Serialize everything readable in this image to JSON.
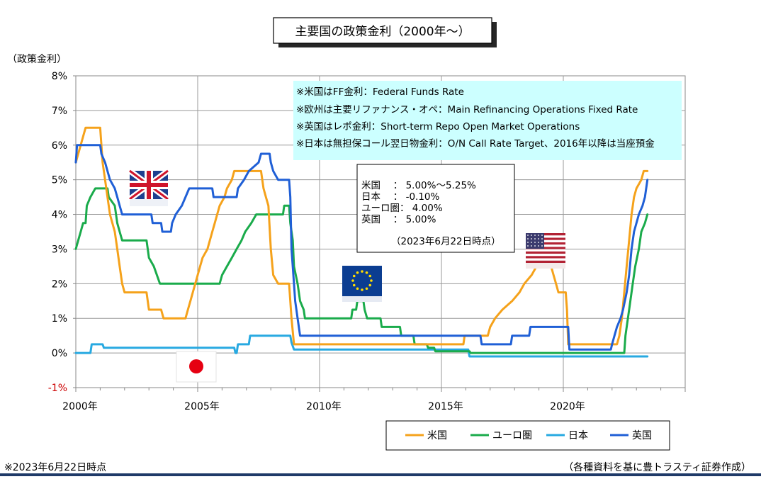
{
  "title": "主要国の政策金利（2000年～）",
  "y_unit_label": "（政策金利）",
  "notes": [
    "※米国はFF金利：Federal Funds Rate",
    "※欧州は主要リファナンス・オペ：Main Refinancing Operations Fixed Rate",
    "※英国はレポ金利：Short-term Repo Open Market Operations",
    "※日本は無担保コール翌日物金利：O/N Call Rate Target、2016年以降は当座預金"
  ],
  "info_box": {
    "lines": [
      "米国　 ： 5.00%～5.25%",
      "日本　 ： -0.10%",
      "ユーロ圏： 4.00%",
      "英国　 ： 5.00%"
    ],
    "date": "（2023年6月22日時点）"
  },
  "footer_left": "※2023年6月22日時点",
  "footer_right": "（各種資料を基に豊トラスティ証券作成）",
  "colors": {
    "us": "#f5a21b",
    "eu": "#1aab4b",
    "jp": "#27a9e1",
    "uk": "#1f5fd6",
    "note_bg": "#ccffff",
    "footer_line": "#1f3a68"
  },
  "flags": [
    "uk-flag-icon",
    "eu-flag-icon",
    "us-flag-icon",
    "japan-flag-icon"
  ],
  "chart_data": {
    "type": "line",
    "xlim": [
      2000,
      2025
    ],
    "ylim": [
      -1,
      8
    ],
    "y_ticks": [
      "8%",
      "7%",
      "6%",
      "5%",
      "4%",
      "3%",
      "2%",
      "1%",
      "0%",
      "-1%"
    ],
    "x_ticks": [
      {
        "x": 2000,
        "label": "2000年"
      },
      {
        "x": 2005,
        "label": "2005年"
      },
      {
        "x": 2010,
        "label": "2010年"
      },
      {
        "x": 2015,
        "label": "2015年"
      },
      {
        "x": 2020,
        "label": "2020年"
      }
    ],
    "grid": true,
    "legend_placement": "bottom-right",
    "series": [
      {
        "key": "us",
        "name": "米国",
        "points": [
          [
            2000.0,
            5.5
          ],
          [
            2000.1,
            5.75
          ],
          [
            2000.2,
            6.0
          ],
          [
            2000.3,
            6.25
          ],
          [
            2000.4,
            6.5
          ],
          [
            2001.0,
            6.5
          ],
          [
            2001.05,
            6.0
          ],
          [
            2001.1,
            5.5
          ],
          [
            2001.2,
            5.0
          ],
          [
            2001.3,
            4.5
          ],
          [
            2001.4,
            4.0
          ],
          [
            2001.5,
            3.75
          ],
          [
            2001.6,
            3.5
          ],
          [
            2001.7,
            3.0
          ],
          [
            2001.8,
            2.5
          ],
          [
            2001.9,
            2.0
          ],
          [
            2002.0,
            1.75
          ],
          [
            2002.9,
            1.75
          ],
          [
            2003.0,
            1.25
          ],
          [
            2003.5,
            1.25
          ],
          [
            2003.6,
            1.0
          ],
          [
            2004.5,
            1.0
          ],
          [
            2004.6,
            1.25
          ],
          [
            2004.7,
            1.5
          ],
          [
            2004.8,
            1.75
          ],
          [
            2004.9,
            2.0
          ],
          [
            2005.0,
            2.25
          ],
          [
            2005.1,
            2.5
          ],
          [
            2005.2,
            2.75
          ],
          [
            2005.4,
            3.0
          ],
          [
            2005.5,
            3.25
          ],
          [
            2005.6,
            3.5
          ],
          [
            2005.7,
            3.75
          ],
          [
            2005.8,
            4.0
          ],
          [
            2005.9,
            4.25
          ],
          [
            2006.1,
            4.5
          ],
          [
            2006.2,
            4.75
          ],
          [
            2006.4,
            5.0
          ],
          [
            2006.5,
            5.25
          ],
          [
            2007.6,
            5.25
          ],
          [
            2007.7,
            4.75
          ],
          [
            2007.8,
            4.5
          ],
          [
            2007.9,
            4.25
          ],
          [
            2008.0,
            3.0
          ],
          [
            2008.1,
            2.25
          ],
          [
            2008.3,
            2.0
          ],
          [
            2008.75,
            2.0
          ],
          [
            2008.8,
            1.5
          ],
          [
            2008.85,
            1.0
          ],
          [
            2008.95,
            0.25
          ],
          [
            2015.9,
            0.25
          ],
          [
            2015.95,
            0.5
          ],
          [
            2016.9,
            0.5
          ],
          [
            2017.0,
            0.75
          ],
          [
            2017.2,
            1.0
          ],
          [
            2017.5,
            1.25
          ],
          [
            2017.9,
            1.5
          ],
          [
            2018.2,
            1.75
          ],
          [
            2018.4,
            2.0
          ],
          [
            2018.7,
            2.25
          ],
          [
            2018.9,
            2.5
          ],
          [
            2019.5,
            2.5
          ],
          [
            2019.6,
            2.25
          ],
          [
            2019.7,
            2.0
          ],
          [
            2019.8,
            1.75
          ],
          [
            2020.1,
            1.75
          ],
          [
            2020.15,
            1.25
          ],
          [
            2020.2,
            0.25
          ],
          [
            2022.2,
            0.25
          ],
          [
            2022.3,
            0.5
          ],
          [
            2022.4,
            1.0
          ],
          [
            2022.5,
            1.75
          ],
          [
            2022.6,
            2.5
          ],
          [
            2022.7,
            3.25
          ],
          [
            2022.8,
            4.0
          ],
          [
            2022.9,
            4.5
          ],
          [
            2023.0,
            4.75
          ],
          [
            2023.2,
            5.0
          ],
          [
            2023.3,
            5.25
          ],
          [
            2023.45,
            5.25
          ]
        ]
      },
      {
        "key": "eu",
        "name": "ユーロ圏",
        "points": [
          [
            2000.0,
            3.0
          ],
          [
            2000.1,
            3.25
          ],
          [
            2000.2,
            3.5
          ],
          [
            2000.3,
            3.75
          ],
          [
            2000.4,
            3.75
          ],
          [
            2000.45,
            4.25
          ],
          [
            2000.6,
            4.5
          ],
          [
            2000.8,
            4.75
          ],
          [
            2001.3,
            4.75
          ],
          [
            2001.35,
            4.5
          ],
          [
            2001.6,
            4.25
          ],
          [
            2001.7,
            3.75
          ],
          [
            2001.8,
            3.5
          ],
          [
            2001.9,
            3.25
          ],
          [
            2002.9,
            3.25
          ],
          [
            2003.0,
            2.75
          ],
          [
            2003.2,
            2.5
          ],
          [
            2003.45,
            2.0
          ],
          [
            2005.9,
            2.0
          ],
          [
            2006.0,
            2.25
          ],
          [
            2006.2,
            2.5
          ],
          [
            2006.4,
            2.75
          ],
          [
            2006.6,
            3.0
          ],
          [
            2006.8,
            3.25
          ],
          [
            2006.95,
            3.5
          ],
          [
            2007.2,
            3.75
          ],
          [
            2007.4,
            4.0
          ],
          [
            2008.5,
            4.0
          ],
          [
            2008.55,
            4.25
          ],
          [
            2008.75,
            4.25
          ],
          [
            2008.8,
            3.75
          ],
          [
            2008.9,
            3.25
          ],
          [
            2008.95,
            2.5
          ],
          [
            2009.1,
            2.0
          ],
          [
            2009.2,
            1.5
          ],
          [
            2009.35,
            1.25
          ],
          [
            2009.4,
            1.0
          ],
          [
            2011.3,
            1.0
          ],
          [
            2011.35,
            1.25
          ],
          [
            2011.5,
            1.25
          ],
          [
            2011.55,
            1.5
          ],
          [
            2011.8,
            1.5
          ],
          [
            2011.85,
            1.25
          ],
          [
            2011.95,
            1.0
          ],
          [
            2012.5,
            1.0
          ],
          [
            2012.55,
            0.75
          ],
          [
            2013.3,
            0.75
          ],
          [
            2013.35,
            0.5
          ],
          [
            2013.85,
            0.5
          ],
          [
            2013.9,
            0.25
          ],
          [
            2014.4,
            0.25
          ],
          [
            2014.45,
            0.15
          ],
          [
            2014.7,
            0.15
          ],
          [
            2014.75,
            0.05
          ],
          [
            2016.15,
            0.05
          ],
          [
            2016.2,
            0.0
          ],
          [
            2022.5,
            0.0
          ],
          [
            2022.55,
            0.5
          ],
          [
            2022.7,
            1.25
          ],
          [
            2022.85,
            2.0
          ],
          [
            2022.95,
            2.5
          ],
          [
            2023.1,
            3.0
          ],
          [
            2023.2,
            3.5
          ],
          [
            2023.35,
            3.75
          ],
          [
            2023.45,
            4.0
          ]
        ]
      },
      {
        "key": "jp",
        "name": "日本",
        "points": [
          [
            2000.0,
            0.0
          ],
          [
            2000.6,
            0.0
          ],
          [
            2000.65,
            0.25
          ],
          [
            2001.1,
            0.25
          ],
          [
            2001.15,
            0.15
          ],
          [
            2006.5,
            0.15
          ],
          [
            2006.55,
            0.0
          ],
          [
            2006.6,
            0.0
          ],
          [
            2006.65,
            0.25
          ],
          [
            2007.1,
            0.25
          ],
          [
            2007.15,
            0.5
          ],
          [
            2008.8,
            0.5
          ],
          [
            2008.85,
            0.3
          ],
          [
            2008.95,
            0.1
          ],
          [
            2016.1,
            0.1
          ],
          [
            2016.15,
            -0.1
          ],
          [
            2023.45,
            -0.1
          ]
        ]
      },
      {
        "key": "uk",
        "name": "英国",
        "points": [
          [
            2000.0,
            5.5
          ],
          [
            2000.05,
            6.0
          ],
          [
            2001.0,
            6.0
          ],
          [
            2001.05,
            5.75
          ],
          [
            2001.2,
            5.5
          ],
          [
            2001.3,
            5.25
          ],
          [
            2001.4,
            5.0
          ],
          [
            2001.6,
            4.75
          ],
          [
            2001.7,
            4.5
          ],
          [
            2001.8,
            4.25
          ],
          [
            2001.9,
            4.0
          ],
          [
            2003.1,
            4.0
          ],
          [
            2003.15,
            3.75
          ],
          [
            2003.5,
            3.75
          ],
          [
            2003.55,
            3.5
          ],
          [
            2003.9,
            3.5
          ],
          [
            2003.95,
            3.75
          ],
          [
            2004.1,
            4.0
          ],
          [
            2004.35,
            4.25
          ],
          [
            2004.5,
            4.5
          ],
          [
            2004.65,
            4.75
          ],
          [
            2005.6,
            4.75
          ],
          [
            2005.65,
            4.5
          ],
          [
            2006.6,
            4.5
          ],
          [
            2006.65,
            4.75
          ],
          [
            2006.9,
            5.0
          ],
          [
            2007.1,
            5.25
          ],
          [
            2007.5,
            5.5
          ],
          [
            2007.6,
            5.75
          ],
          [
            2007.95,
            5.75
          ],
          [
            2008.0,
            5.5
          ],
          [
            2008.1,
            5.25
          ],
          [
            2008.3,
            5.0
          ],
          [
            2008.75,
            5.0
          ],
          [
            2008.8,
            4.5
          ],
          [
            2008.85,
            3.0
          ],
          [
            2008.95,
            2.0
          ],
          [
            2009.0,
            1.5
          ],
          [
            2009.1,
            1.0
          ],
          [
            2009.2,
            0.5
          ],
          [
            2016.6,
            0.5
          ],
          [
            2016.65,
            0.25
          ],
          [
            2017.85,
            0.25
          ],
          [
            2017.9,
            0.5
          ],
          [
            2018.6,
            0.5
          ],
          [
            2018.65,
            0.75
          ],
          [
            2020.2,
            0.75
          ],
          [
            2020.25,
            0.1
          ],
          [
            2021.95,
            0.1
          ],
          [
            2022.0,
            0.25
          ],
          [
            2022.1,
            0.5
          ],
          [
            2022.2,
            0.75
          ],
          [
            2022.35,
            1.0
          ],
          [
            2022.45,
            1.25
          ],
          [
            2022.6,
            1.75
          ],
          [
            2022.7,
            2.25
          ],
          [
            2022.8,
            3.0
          ],
          [
            2022.9,
            3.5
          ],
          [
            2023.1,
            4.0
          ],
          [
            2023.25,
            4.25
          ],
          [
            2023.35,
            4.5
          ],
          [
            2023.45,
            5.0
          ]
        ]
      }
    ]
  }
}
